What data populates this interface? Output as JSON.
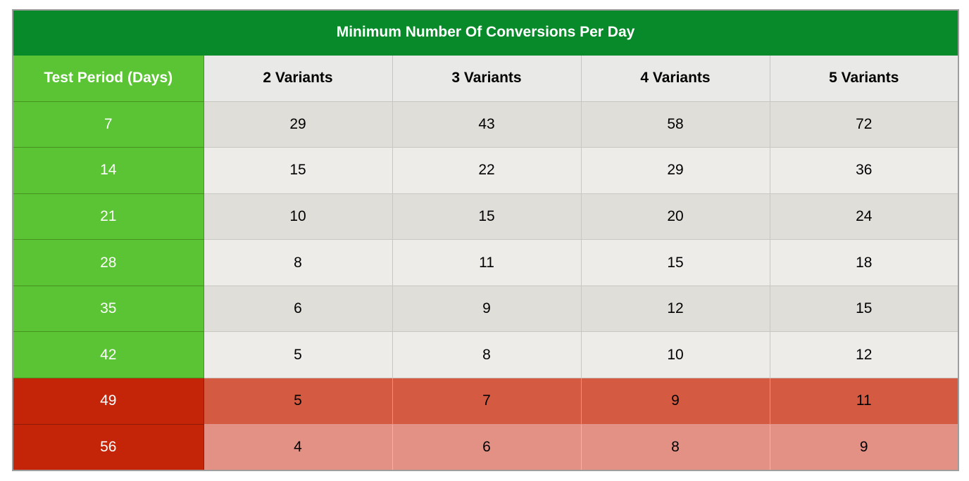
{
  "chart_data": {
    "type": "table",
    "title": "Minimum Number Of Conversions Per Day",
    "columns": [
      "Test Period (Days)",
      "2 Variants",
      "3 Variants",
      "4 Variants",
      "5 Variants"
    ],
    "rows": [
      {
        "period": "7",
        "values": [
          29,
          43,
          58,
          72
        ],
        "tone": "green",
        "shade": "dark"
      },
      {
        "period": "14",
        "values": [
          15,
          22,
          29,
          36
        ],
        "tone": "green",
        "shade": "light"
      },
      {
        "period": "21",
        "values": [
          10,
          15,
          20,
          24
        ],
        "tone": "green",
        "shade": "dark"
      },
      {
        "period": "28",
        "values": [
          8,
          11,
          15,
          18
        ],
        "tone": "green",
        "shade": "light"
      },
      {
        "period": "35",
        "values": [
          6,
          9,
          12,
          15
        ],
        "tone": "green",
        "shade": "dark"
      },
      {
        "period": "42",
        "values": [
          5,
          8,
          10,
          12
        ],
        "tone": "green",
        "shade": "light"
      },
      {
        "period": "49",
        "values": [
          5,
          7,
          9,
          11
        ],
        "tone": "red",
        "shade": "red"
      },
      {
        "period": "56",
        "values": [
          4,
          6,
          8,
          9
        ],
        "tone": "red",
        "shade": "red-light"
      }
    ],
    "legend_position": "none",
    "grid": true
  },
  "colors": {
    "title_bg": "#088A2B",
    "title_text": "#FFFFFF",
    "header_bg": "#E9E9E7",
    "header_text": "#000000",
    "period_green": "#5BC434",
    "period_red": "#C42508",
    "period_text": "#FFFFFF",
    "row_gray_dark": "#E0DED9",
    "row_gray_light": "#EDECE9",
    "row_red": "#D45A41",
    "row_red_light": "#E39085",
    "cell_text": "#000000"
  }
}
